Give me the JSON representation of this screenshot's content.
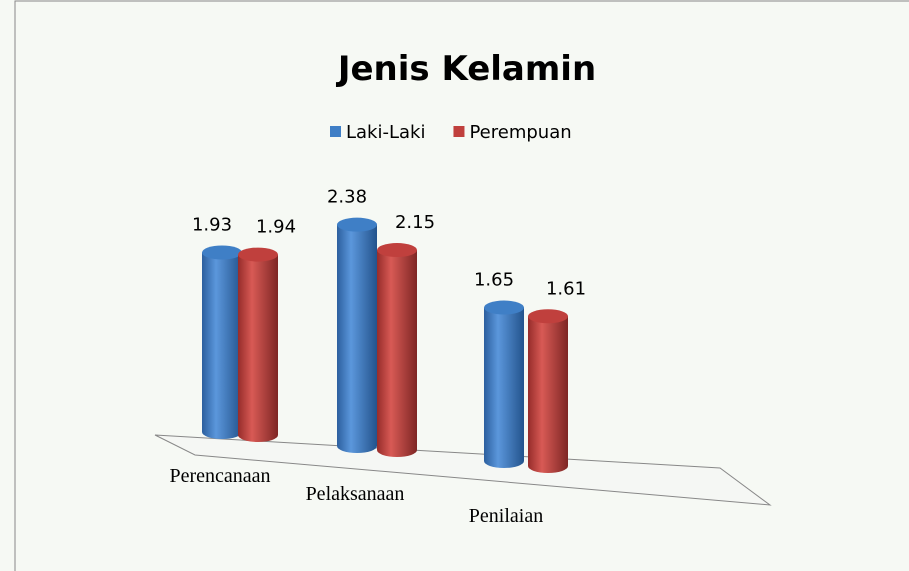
{
  "chart_data": {
    "type": "bar3d",
    "title": "Jenis Kelamin",
    "categories": [
      "Perencanaan",
      "Pelaksanaan",
      "Penilaian"
    ],
    "series": [
      {
        "name": "Laki-Laki",
        "color": "#3f7fc6",
        "values": [
          1.93,
          2.38,
          1.65
        ]
      },
      {
        "name": "Perempuan",
        "color": "#c0403d",
        "values": [
          1.94,
          2.15,
          1.61
        ]
      }
    ]
  }
}
